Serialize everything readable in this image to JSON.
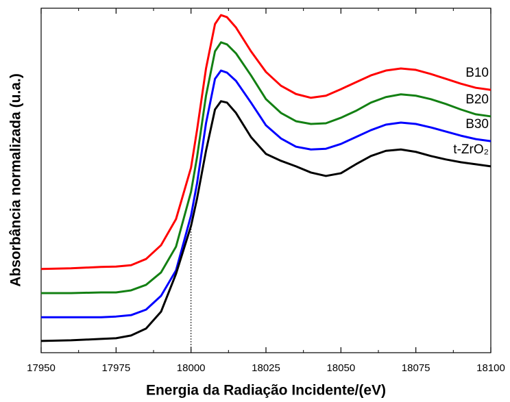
{
  "chart_data": {
    "type": "line",
    "x_label": "Energia da Radiação Incidente/(eV)",
    "y_label": "Absorbância normalizada (u.a.)",
    "xlim": [
      17950,
      18100
    ],
    "xticks": [
      17950,
      17975,
      18000,
      18025,
      18050,
      18075,
      18100
    ],
    "ylim": [
      0,
      1
    ],
    "x": [
      17950,
      17960,
      17970,
      17975,
      17980,
      17985,
      17990,
      17995,
      18000,
      18002,
      18005,
      18008,
      18010,
      18012,
      18015,
      18020,
      18025,
      18030,
      18035,
      18040,
      18045,
      18050,
      18055,
      18060,
      18065,
      18070,
      18075,
      18080,
      18085,
      18090,
      18095,
      18100
    ],
    "series": [
      {
        "name": "B10",
        "color": "#ff0000",
        "values": [
          0.243,
          0.245,
          0.249,
          0.25,
          0.254,
          0.272,
          0.312,
          0.388,
          0.537,
          0.646,
          0.825,
          0.954,
          0.98,
          0.974,
          0.944,
          0.875,
          0.815,
          0.775,
          0.751,
          0.74,
          0.746,
          0.765,
          0.785,
          0.805,
          0.819,
          0.825,
          0.821,
          0.809,
          0.795,
          0.781,
          0.769,
          0.763
        ]
      },
      {
        "name": "B20",
        "color": "#138013",
        "values": [
          0.173,
          0.173,
          0.175,
          0.175,
          0.181,
          0.197,
          0.233,
          0.308,
          0.467,
          0.567,
          0.746,
          0.875,
          0.901,
          0.895,
          0.869,
          0.805,
          0.736,
          0.696,
          0.672,
          0.664,
          0.666,
          0.682,
          0.702,
          0.726,
          0.742,
          0.75,
          0.746,
          0.736,
          0.722,
          0.706,
          0.692,
          0.686
        ]
      },
      {
        "name": "B30",
        "color": "#0000ff",
        "values": [
          0.103,
          0.103,
          0.103,
          0.105,
          0.109,
          0.125,
          0.165,
          0.239,
          0.398,
          0.491,
          0.666,
          0.795,
          0.819,
          0.813,
          0.789,
          0.726,
          0.66,
          0.622,
          0.598,
          0.59,
          0.592,
          0.606,
          0.626,
          0.646,
          0.662,
          0.668,
          0.664,
          0.654,
          0.642,
          0.63,
          0.62,
          0.614
        ]
      },
      {
        "name": "t-ZrO₂",
        "color": "#000000",
        "values": [
          0.034,
          0.036,
          0.04,
          0.042,
          0.05,
          0.07,
          0.119,
          0.229,
          0.368,
          0.447,
          0.586,
          0.706,
          0.73,
          0.726,
          0.696,
          0.626,
          0.577,
          0.557,
          0.541,
          0.523,
          0.513,
          0.521,
          0.547,
          0.571,
          0.586,
          0.59,
          0.583,
          0.571,
          0.561,
          0.553,
          0.547,
          0.541
        ]
      }
    ]
  }
}
